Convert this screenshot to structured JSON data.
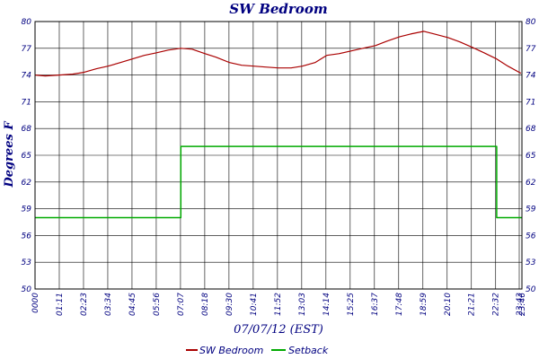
{
  "chart_data": {
    "type": "line",
    "title": "SW Bedroom",
    "xlabel": "07/07/12 (EST)",
    "ylabel": "Degrees F",
    "ylim": [
      50,
      80
    ],
    "y_ticks": [
      "50",
      "53",
      "56",
      "59",
      "62",
      "65",
      "68",
      "71",
      "74",
      "77",
      "80"
    ],
    "x_ticks": [
      "0000",
      "01:11",
      "02:23",
      "03:34",
      "04:45",
      "05:56",
      "07:07",
      "08:18",
      "09:30",
      "10:41",
      "11:52",
      "13:03",
      "14:14",
      "15:25",
      "16:37",
      "17:48",
      "18:59",
      "20:10",
      "21:21",
      "22:32",
      "23:43",
      "23:46"
    ],
    "grid": true,
    "legend_position": "bottom",
    "series": [
      {
        "name": "SW Bedroom",
        "color": "#aa0000",
        "x": [
          "00:00",
          "00:30",
          "01:11",
          "01:50",
          "02:23",
          "03:00",
          "03:34",
          "04:10",
          "04:45",
          "05:20",
          "05:56",
          "06:30",
          "07:07",
          "07:40",
          "08:18",
          "08:50",
          "09:30",
          "10:05",
          "10:41",
          "11:15",
          "11:52",
          "12:30",
          "13:03",
          "13:40",
          "14:14",
          "14:50",
          "15:25",
          "16:00",
          "16:37",
          "17:10",
          "17:48",
          "18:20",
          "18:59",
          "19:30",
          "20:10",
          "20:45",
          "21:21",
          "21:55",
          "22:32",
          "23:05",
          "23:43"
        ],
        "values": [
          74.0,
          73.9,
          74.0,
          74.1,
          74.3,
          74.7,
          75.0,
          75.4,
          75.8,
          76.2,
          76.5,
          76.8,
          77.0,
          76.9,
          76.4,
          76.0,
          75.4,
          75.1,
          75.0,
          74.9,
          74.8,
          74.8,
          75.0,
          75.4,
          76.2,
          76.4,
          76.7,
          77.0,
          77.3,
          77.8,
          78.3,
          78.6,
          78.9,
          78.6,
          78.2,
          77.7,
          77.1,
          76.5,
          75.8,
          75.0,
          74.2
        ]
      },
      {
        "name": "Setback",
        "color": "#00aa00",
        "x": [
          "00:00",
          "07:07",
          "07:07",
          "22:32",
          "22:32",
          "23:46"
        ],
        "values": [
          58,
          58,
          66,
          66,
          58,
          58
        ]
      }
    ]
  }
}
